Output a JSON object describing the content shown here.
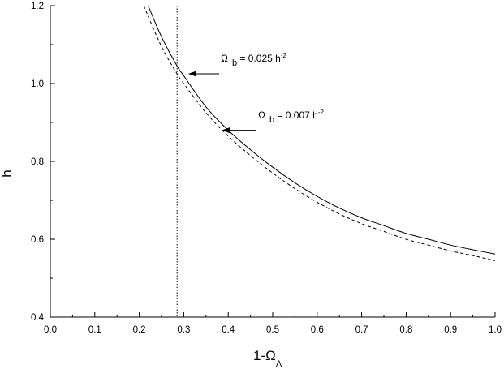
{
  "chart_data": {
    "type": "line",
    "xlabel": {
      "prefix": "1-",
      "omega": "Ω",
      "sub": "Λ"
    },
    "ylabel": "h",
    "xlim": [
      0.0,
      1.0
    ],
    "ylim": [
      0.4,
      1.2
    ],
    "xticks": [
      "0.0",
      "0.1",
      "0.2",
      "0.3",
      "0.4",
      "0.5",
      "0.6",
      "0.7",
      "0.8",
      "0.9",
      "1.0"
    ],
    "yticks": [
      "0.4",
      "0.6",
      "0.8",
      "1.0",
      "1.2"
    ],
    "grid": false,
    "vline": {
      "x": 0.285,
      "style": "dotted"
    },
    "series": [
      {
        "style": "solid",
        "x": [
          0.22,
          0.25,
          0.285,
          0.3,
          0.35,
          0.4,
          0.45,
          0.5,
          0.55,
          0.6,
          0.65,
          0.7,
          0.75,
          0.8,
          0.85,
          0.9,
          0.95,
          1.0
        ],
        "y": [
          1.2,
          1.12,
          1.045,
          1.02,
          0.94,
          0.88,
          0.83,
          0.785,
          0.745,
          0.71,
          0.68,
          0.655,
          0.635,
          0.615,
          0.6,
          0.585,
          0.573,
          0.562
        ]
      },
      {
        "style": "dashed",
        "x": [
          0.21,
          0.25,
          0.285,
          0.3,
          0.35,
          0.4,
          0.45,
          0.5,
          0.55,
          0.6,
          0.65,
          0.7,
          0.75,
          0.8,
          0.85,
          0.9,
          0.95,
          1.0
        ],
        "y": [
          1.2,
          1.095,
          1.025,
          1.0,
          0.925,
          0.865,
          0.815,
          0.77,
          0.73,
          0.695,
          0.665,
          0.64,
          0.62,
          0.6,
          0.585,
          0.57,
          0.558,
          0.545
        ]
      }
    ],
    "annotations": [
      {
        "omega": "Ω",
        "sub": "b",
        "text": " = 0.025 h",
        "sup": "-2",
        "arrow_to": {
          "x": 0.31,
          "y": 1.025
        }
      },
      {
        "omega": "Ω",
        "sub": "b",
        "text": " = 0.007 h",
        "sup": "-2",
        "arrow_to": {
          "x": 0.385,
          "y": 0.88
        }
      }
    ]
  }
}
